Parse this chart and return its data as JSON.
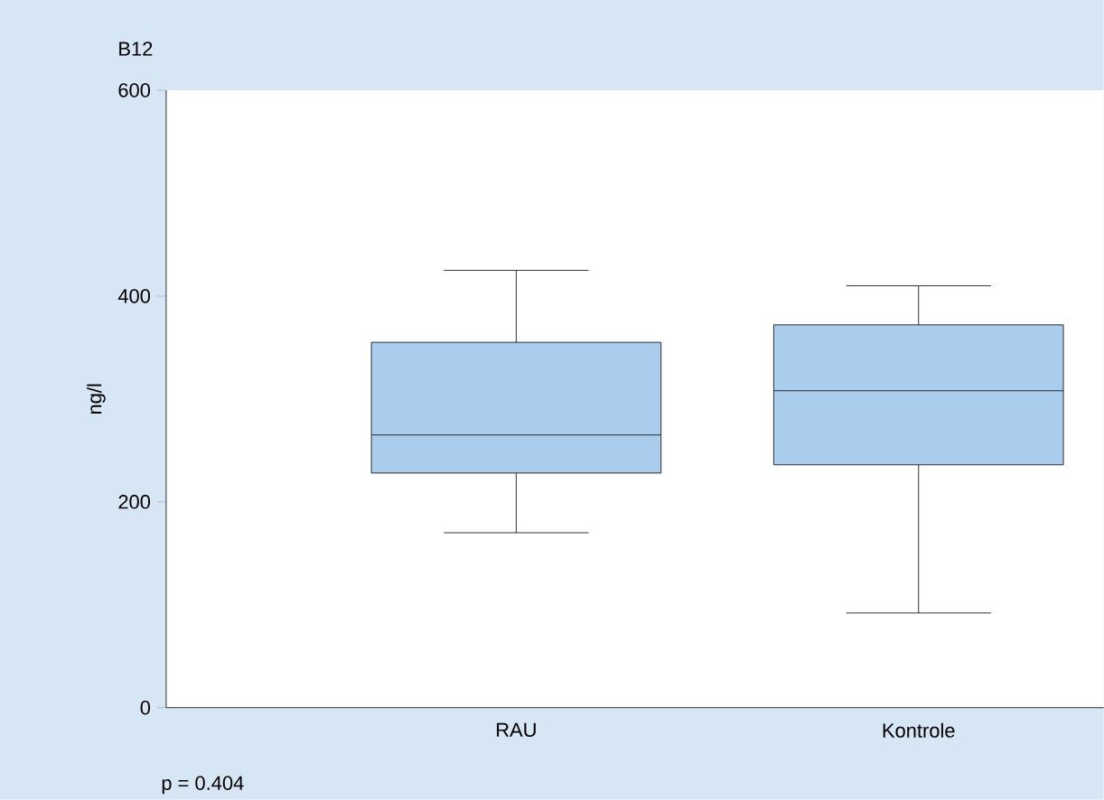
{
  "chart_data": {
    "type": "box",
    "title": "B12",
    "ylabel": "ng/l",
    "categories": [
      "RAU",
      "Kontrole"
    ],
    "boxes": [
      {
        "low": 170,
        "q1": 228,
        "median": 265,
        "q3": 355,
        "high": 425
      },
      {
        "low": 92,
        "q1": 236,
        "median": 308,
        "q3": 372,
        "high": 410
      }
    ],
    "color": "#aacdee",
    "ylim": [
      0,
      600
    ],
    "yticks": [
      0,
      200,
      400,
      600
    ],
    "annotations": [
      "p = 0.404"
    ]
  }
}
